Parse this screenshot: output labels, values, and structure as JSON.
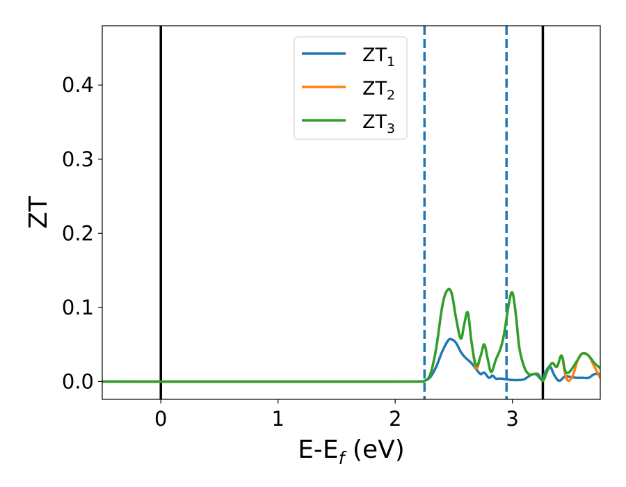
{
  "chart_data": {
    "type": "line",
    "title": "",
    "xlabel_main": "E-E",
    "xlabel_sub": "f",
    "xlabel_tail": " (eV)",
    "ylabel": "ZT",
    "xlim": [
      -0.5,
      3.75
    ],
    "ylim": [
      -0.024,
      0.48
    ],
    "xticks": [
      0,
      1,
      2,
      3
    ],
    "yticks": [
      0.0,
      0.1,
      0.2,
      0.3,
      0.4
    ],
    "xtick_labels": [
      "0",
      "1",
      "2",
      "3"
    ],
    "ytick_labels": [
      "0.0",
      "0.1",
      "0.2",
      "0.3",
      "0.4"
    ],
    "grid": false,
    "legend_position": "top-center",
    "vlines_solid": [
      0.0,
      3.26
    ],
    "vlines_dashed": [
      2.25,
      2.95
    ],
    "vline_solid_color": "#000000",
    "vline_dashed_color": "#1f77b4",
    "series": [
      {
        "name_main": "ZT",
        "name_sub": "1",
        "color": "#1f77b4",
        "x": [
          -0.5,
          2.2,
          2.25,
          2.3,
          2.35,
          2.4,
          2.45,
          2.48,
          2.52,
          2.56,
          2.6,
          2.65,
          2.7,
          2.73,
          2.76,
          2.8,
          2.83,
          2.86,
          2.9,
          2.95,
          3.0,
          3.05,
          3.1,
          3.15,
          3.2,
          3.25,
          3.28,
          3.32,
          3.36,
          3.4,
          3.45,
          3.5,
          3.55,
          3.6,
          3.65,
          3.7,
          3.75
        ],
        "y": [
          0.0,
          0.0,
          0.001,
          0.006,
          0.02,
          0.04,
          0.055,
          0.057,
          0.052,
          0.04,
          0.032,
          0.025,
          0.015,
          0.01,
          0.012,
          0.005,
          0.008,
          0.004,
          0.004,
          0.003,
          0.002,
          0.002,
          0.003,
          0.008,
          0.01,
          0.003,
          0.012,
          0.02,
          0.008,
          0.001,
          0.007,
          0.006,
          0.005,
          0.005,
          0.005,
          0.01,
          0.01
        ]
      },
      {
        "name_main": "ZT",
        "name_sub": "2",
        "color": "#ff7f0e",
        "x": [
          -0.5,
          2.2,
          2.25,
          2.3,
          2.35,
          2.4,
          2.44,
          2.48,
          2.52,
          2.56,
          2.59,
          2.62,
          2.65,
          2.69,
          2.73,
          2.76,
          2.79,
          2.82,
          2.86,
          2.9,
          2.93,
          2.97,
          3.0,
          3.03,
          3.06,
          3.1,
          3.14,
          3.18,
          3.22,
          3.26,
          3.3,
          3.34,
          3.38,
          3.42,
          3.45,
          3.48,
          3.52,
          3.56,
          3.6,
          3.65,
          3.7,
          3.75
        ],
        "y": [
          0.0,
          0.0,
          0.001,
          0.01,
          0.045,
          0.1,
          0.122,
          0.12,
          0.085,
          0.058,
          0.078,
          0.093,
          0.055,
          0.018,
          0.035,
          0.05,
          0.03,
          0.013,
          0.03,
          0.045,
          0.065,
          0.105,
          0.12,
          0.09,
          0.045,
          0.02,
          0.01,
          0.01,
          0.01,
          0.001,
          0.015,
          0.025,
          0.02,
          0.035,
          0.01,
          0.001,
          0.01,
          0.03,
          0.038,
          0.035,
          0.02,
          0.005
        ]
      },
      {
        "name_main": "ZT",
        "name_sub": "3",
        "color": "#2ca02c",
        "x": [
          -0.5,
          2.2,
          2.25,
          2.3,
          2.35,
          2.4,
          2.44,
          2.48,
          2.52,
          2.56,
          2.59,
          2.62,
          2.65,
          2.69,
          2.73,
          2.76,
          2.79,
          2.82,
          2.86,
          2.9,
          2.93,
          2.97,
          3.0,
          3.03,
          3.06,
          3.1,
          3.14,
          3.18,
          3.22,
          3.26,
          3.3,
          3.34,
          3.38,
          3.42,
          3.45,
          3.48,
          3.52,
          3.56,
          3.6,
          3.65,
          3.7,
          3.75
        ],
        "y": [
          0.0,
          0.0,
          0.001,
          0.01,
          0.045,
          0.1,
          0.122,
          0.12,
          0.085,
          0.058,
          0.078,
          0.093,
          0.055,
          0.022,
          0.035,
          0.05,
          0.03,
          0.013,
          0.03,
          0.045,
          0.065,
          0.105,
          0.12,
          0.09,
          0.045,
          0.02,
          0.01,
          0.01,
          0.01,
          0.001,
          0.015,
          0.025,
          0.02,
          0.035,
          0.015,
          0.012,
          0.02,
          0.03,
          0.038,
          0.035,
          0.025,
          0.018
        ]
      }
    ]
  }
}
